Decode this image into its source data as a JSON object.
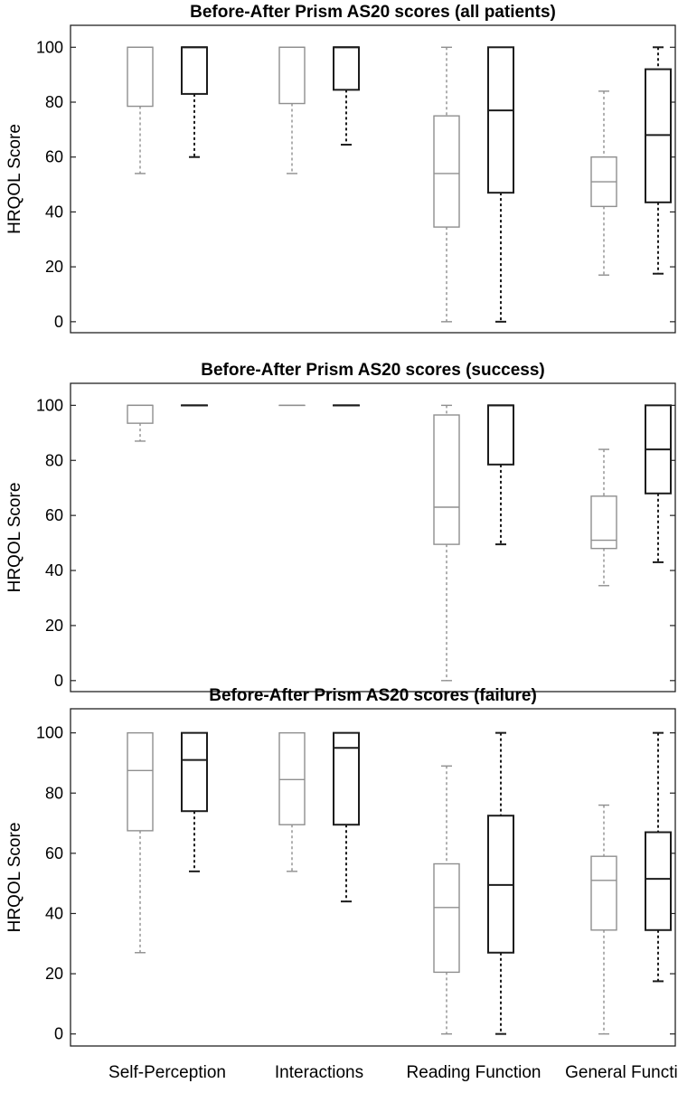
{
  "colors": {
    "before": "#8f8f8f",
    "after": "#1c1c1c",
    "axis": "#222222"
  },
  "categories": [
    "Self-Perception",
    "Interactions",
    "Reading Function",
    "General Function"
  ],
  "chart_data": [
    {
      "type": "box",
      "title": "Before-After Prism AS20 scores (all patients)",
      "ylabel": "HRQOL Score",
      "yticks": [
        0,
        20,
        40,
        60,
        80,
        100
      ],
      "ylim": [
        -4,
        108
      ],
      "series": [
        {
          "values": [
            {
              "min": 54,
              "q1": 78.5,
              "median": 100,
              "q3": 100,
              "max": 100
            },
            {
              "min": 54,
              "q1": 79.5,
              "median": 100,
              "q3": 100,
              "max": 100
            },
            {
              "min": 0,
              "q1": 34.5,
              "median": 54,
              "q3": 75,
              "max": 100
            },
            {
              "min": 17,
              "q1": 42,
              "median": 51,
              "q3": 60,
              "max": 84
            }
          ]
        },
        {
          "values": [
            {
              "min": 60,
              "q1": 83,
              "median": 100,
              "q3": 100,
              "max": 100
            },
            {
              "min": 64.5,
              "q1": 84.5,
              "median": 100,
              "q3": 100,
              "max": 100
            },
            {
              "min": 0,
              "q1": 47,
              "median": 77,
              "q3": 100,
              "max": 100
            },
            {
              "min": 17.5,
              "q1": 43.5,
              "median": 68,
              "q3": 92,
              "max": 100
            }
          ]
        }
      ]
    },
    {
      "type": "box",
      "title": "Before-After Prism AS20 scores (success)",
      "ylabel": "HRQOL Score",
      "yticks": [
        0,
        20,
        40,
        60,
        80,
        100
      ],
      "ylim": [
        -4,
        108
      ],
      "series": [
        {
          "values": [
            {
              "min": 87,
              "q1": 93.5,
              "median": 100,
              "q3": 100,
              "max": 100
            },
            {
              "min": 100,
              "q1": 100,
              "median": 100,
              "q3": 100,
              "max": 100
            },
            {
              "min": 0,
              "q1": 49.5,
              "median": 63,
              "q3": 96.5,
              "max": 100
            },
            {
              "min": 34.5,
              "q1": 48,
              "median": 51,
              "q3": 67,
              "max": 84
            }
          ]
        },
        {
          "values": [
            {
              "min": 100,
              "q1": 100,
              "median": 100,
              "q3": 100,
              "max": 100
            },
            {
              "min": 100,
              "q1": 100,
              "median": 100,
              "q3": 100,
              "max": 100
            },
            {
              "min": 49.5,
              "q1": 78.5,
              "median": 100,
              "q3": 100,
              "max": 100
            },
            {
              "min": 43,
              "q1": 68,
              "median": 84,
              "q3": 100,
              "max": 100
            }
          ]
        }
      ]
    },
    {
      "type": "box",
      "title": "Before-After Prism AS20 scores (failure)",
      "ylabel": "HRQOL Score",
      "yticks": [
        0,
        20,
        40,
        60,
        80,
        100
      ],
      "ylim": [
        -4,
        108
      ],
      "series": [
        {
          "values": [
            {
              "min": 27,
              "q1": 67.5,
              "median": 87.5,
              "q3": 100,
              "max": 100
            },
            {
              "min": 54,
              "q1": 69.5,
              "median": 84.5,
              "q3": 100,
              "max": 100
            },
            {
              "min": 0,
              "q1": 20.5,
              "median": 42,
              "q3": 56.5,
              "max": 89
            },
            {
              "min": 0,
              "q1": 34.5,
              "median": 51,
              "q3": 59,
              "max": 76
            }
          ]
        },
        {
          "values": [
            {
              "min": 54,
              "q1": 74,
              "median": 91,
              "q3": 100,
              "max": 100
            },
            {
              "min": 44,
              "q1": 69.5,
              "median": 95,
              "q3": 100,
              "max": 100
            },
            {
              "min": 0,
              "q1": 27,
              "median": 49.5,
              "q3": 72.5,
              "max": 100
            },
            {
              "min": 17.5,
              "q1": 34.5,
              "median": 51.5,
              "q3": 67,
              "max": 100
            }
          ]
        }
      ]
    }
  ]
}
